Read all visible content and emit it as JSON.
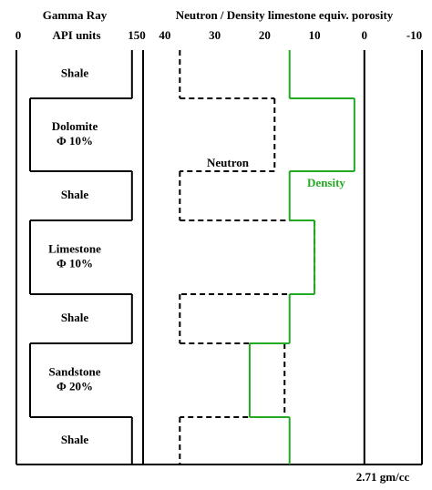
{
  "chart_data": {
    "type": "well-log",
    "gamma_ray": {
      "title": "Gamma Ray",
      "axis_label": "API units",
      "xlim": [
        0,
        150
      ],
      "xticks": [
        0,
        150
      ],
      "color": "#000000",
      "values": [
        144,
        15,
        144,
        15,
        144,
        15,
        144
      ]
    },
    "porosity": {
      "title": "Neutron / Density limestone equiv. porosity",
      "xlim": [
        44,
        -11
      ],
      "xticks": [
        40,
        30,
        20,
        10,
        0,
        -10
      ],
      "reference_line": 0,
      "reference_label": "2.71 gm/cc",
      "series": [
        {
          "name": "Neutron",
          "color": "#000000",
          "dashed": true,
          "values": [
            37,
            18,
            37,
            10,
            37,
            16,
            37
          ]
        },
        {
          "name": "Density",
          "color": "#22aa22",
          "dashed": false,
          "values": [
            15,
            2,
            15,
            10,
            15,
            23,
            15
          ]
        }
      ]
    },
    "layers": [
      {
        "name": "Shale"
      },
      {
        "name": "Dolomite",
        "porosity": "Φ 10%"
      },
      {
        "name": "Shale"
      },
      {
        "name": "Limestone",
        "porosity": "Φ 10%"
      },
      {
        "name": "Shale"
      },
      {
        "name": "Sandstone",
        "porosity": "Φ 20%"
      },
      {
        "name": "Shale"
      }
    ]
  }
}
